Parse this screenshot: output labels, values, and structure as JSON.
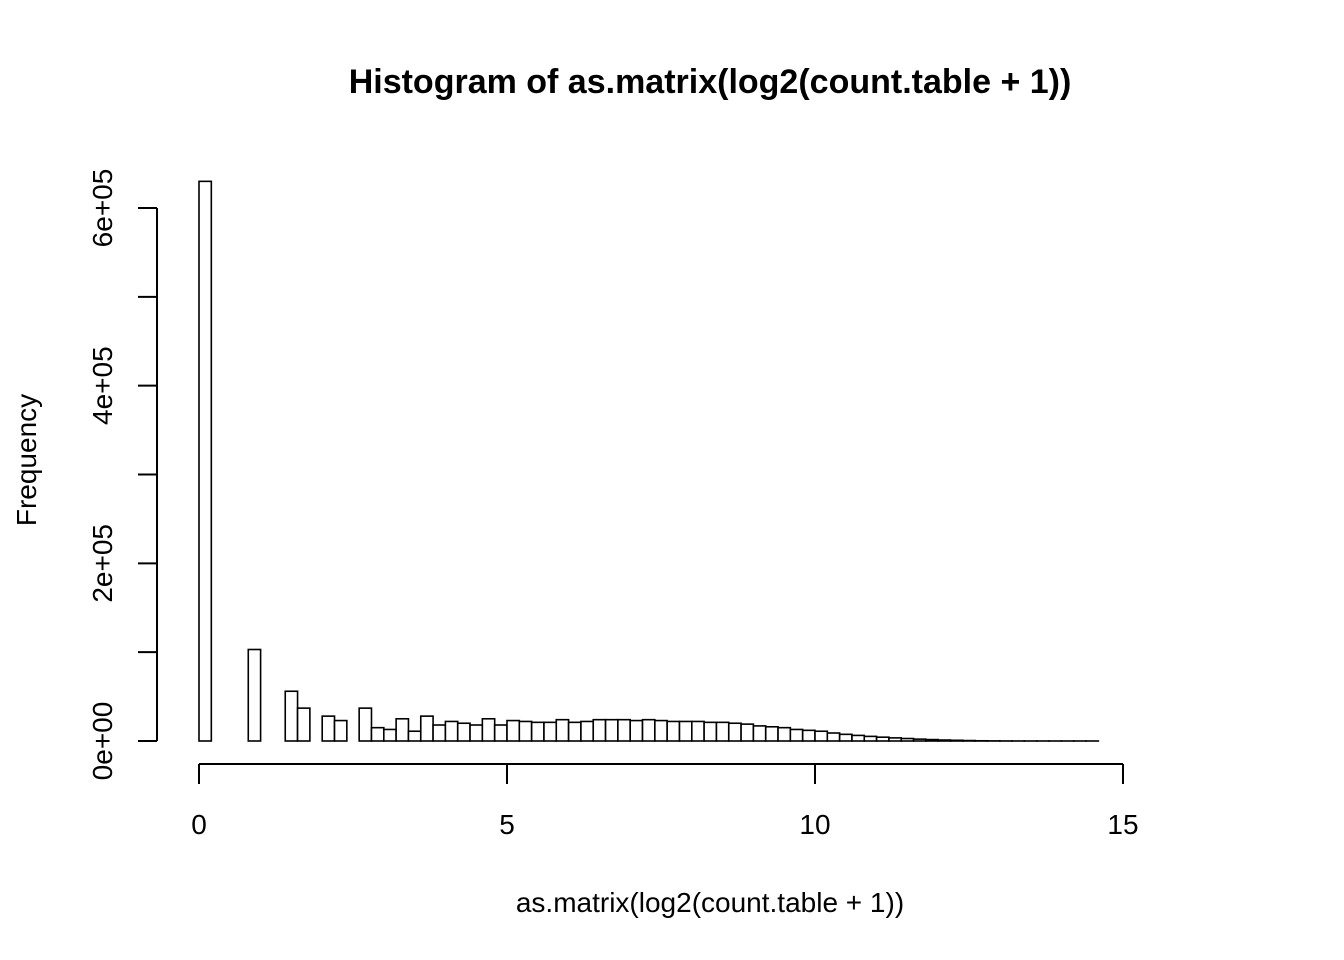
{
  "chart_data": {
    "type": "bar",
    "title": "Histogram of as.matrix(log2(count.table + 1))",
    "xlabel": "as.matrix(log2(count.table + 1))",
    "ylabel": "Frequency",
    "x_ticks": [
      0,
      5,
      10,
      15
    ],
    "x_tick_labels": [
      "0",
      "5",
      "10",
      "15"
    ],
    "y_ticks": [
      0,
      100000,
      200000,
      300000,
      400000,
      500000,
      600000
    ],
    "y_tick_labels": [
      "0e+00",
      "",
      "2e+05",
      "",
      "4e+05",
      "",
      "6e+05"
    ],
    "xlim": [
      0,
      16.6
    ],
    "ylim": [
      0,
      630000
    ],
    "bin_width": 0.2,
    "bin_start": 0,
    "values": [
      630000,
      0,
      0,
      0,
      103000,
      0,
      0,
      56000,
      37000,
      0,
      28000,
      23000,
      0,
      37000,
      15000,
      13000,
      25000,
      11000,
      28000,
      18000,
      22000,
      20000,
      18000,
      25000,
      18000,
      23000,
      22000,
      21000,
      21000,
      24000,
      21000,
      22000,
      24000,
      24000,
      24000,
      23000,
      24000,
      23000,
      22000,
      22000,
      22000,
      21000,
      21000,
      20000,
      19000,
      17000,
      16000,
      15000,
      13000,
      12000,
      11000,
      9000,
      7500,
      6300,
      5200,
      4300,
      3500,
      2800,
      2100,
      1600,
      1100,
      800,
      500,
      250,
      130,
      60,
      30,
      15,
      8,
      4,
      2,
      1,
      1,
      0,
      0,
      0,
      0,
      0,
      0,
      0,
      0,
      0,
      0
    ]
  }
}
